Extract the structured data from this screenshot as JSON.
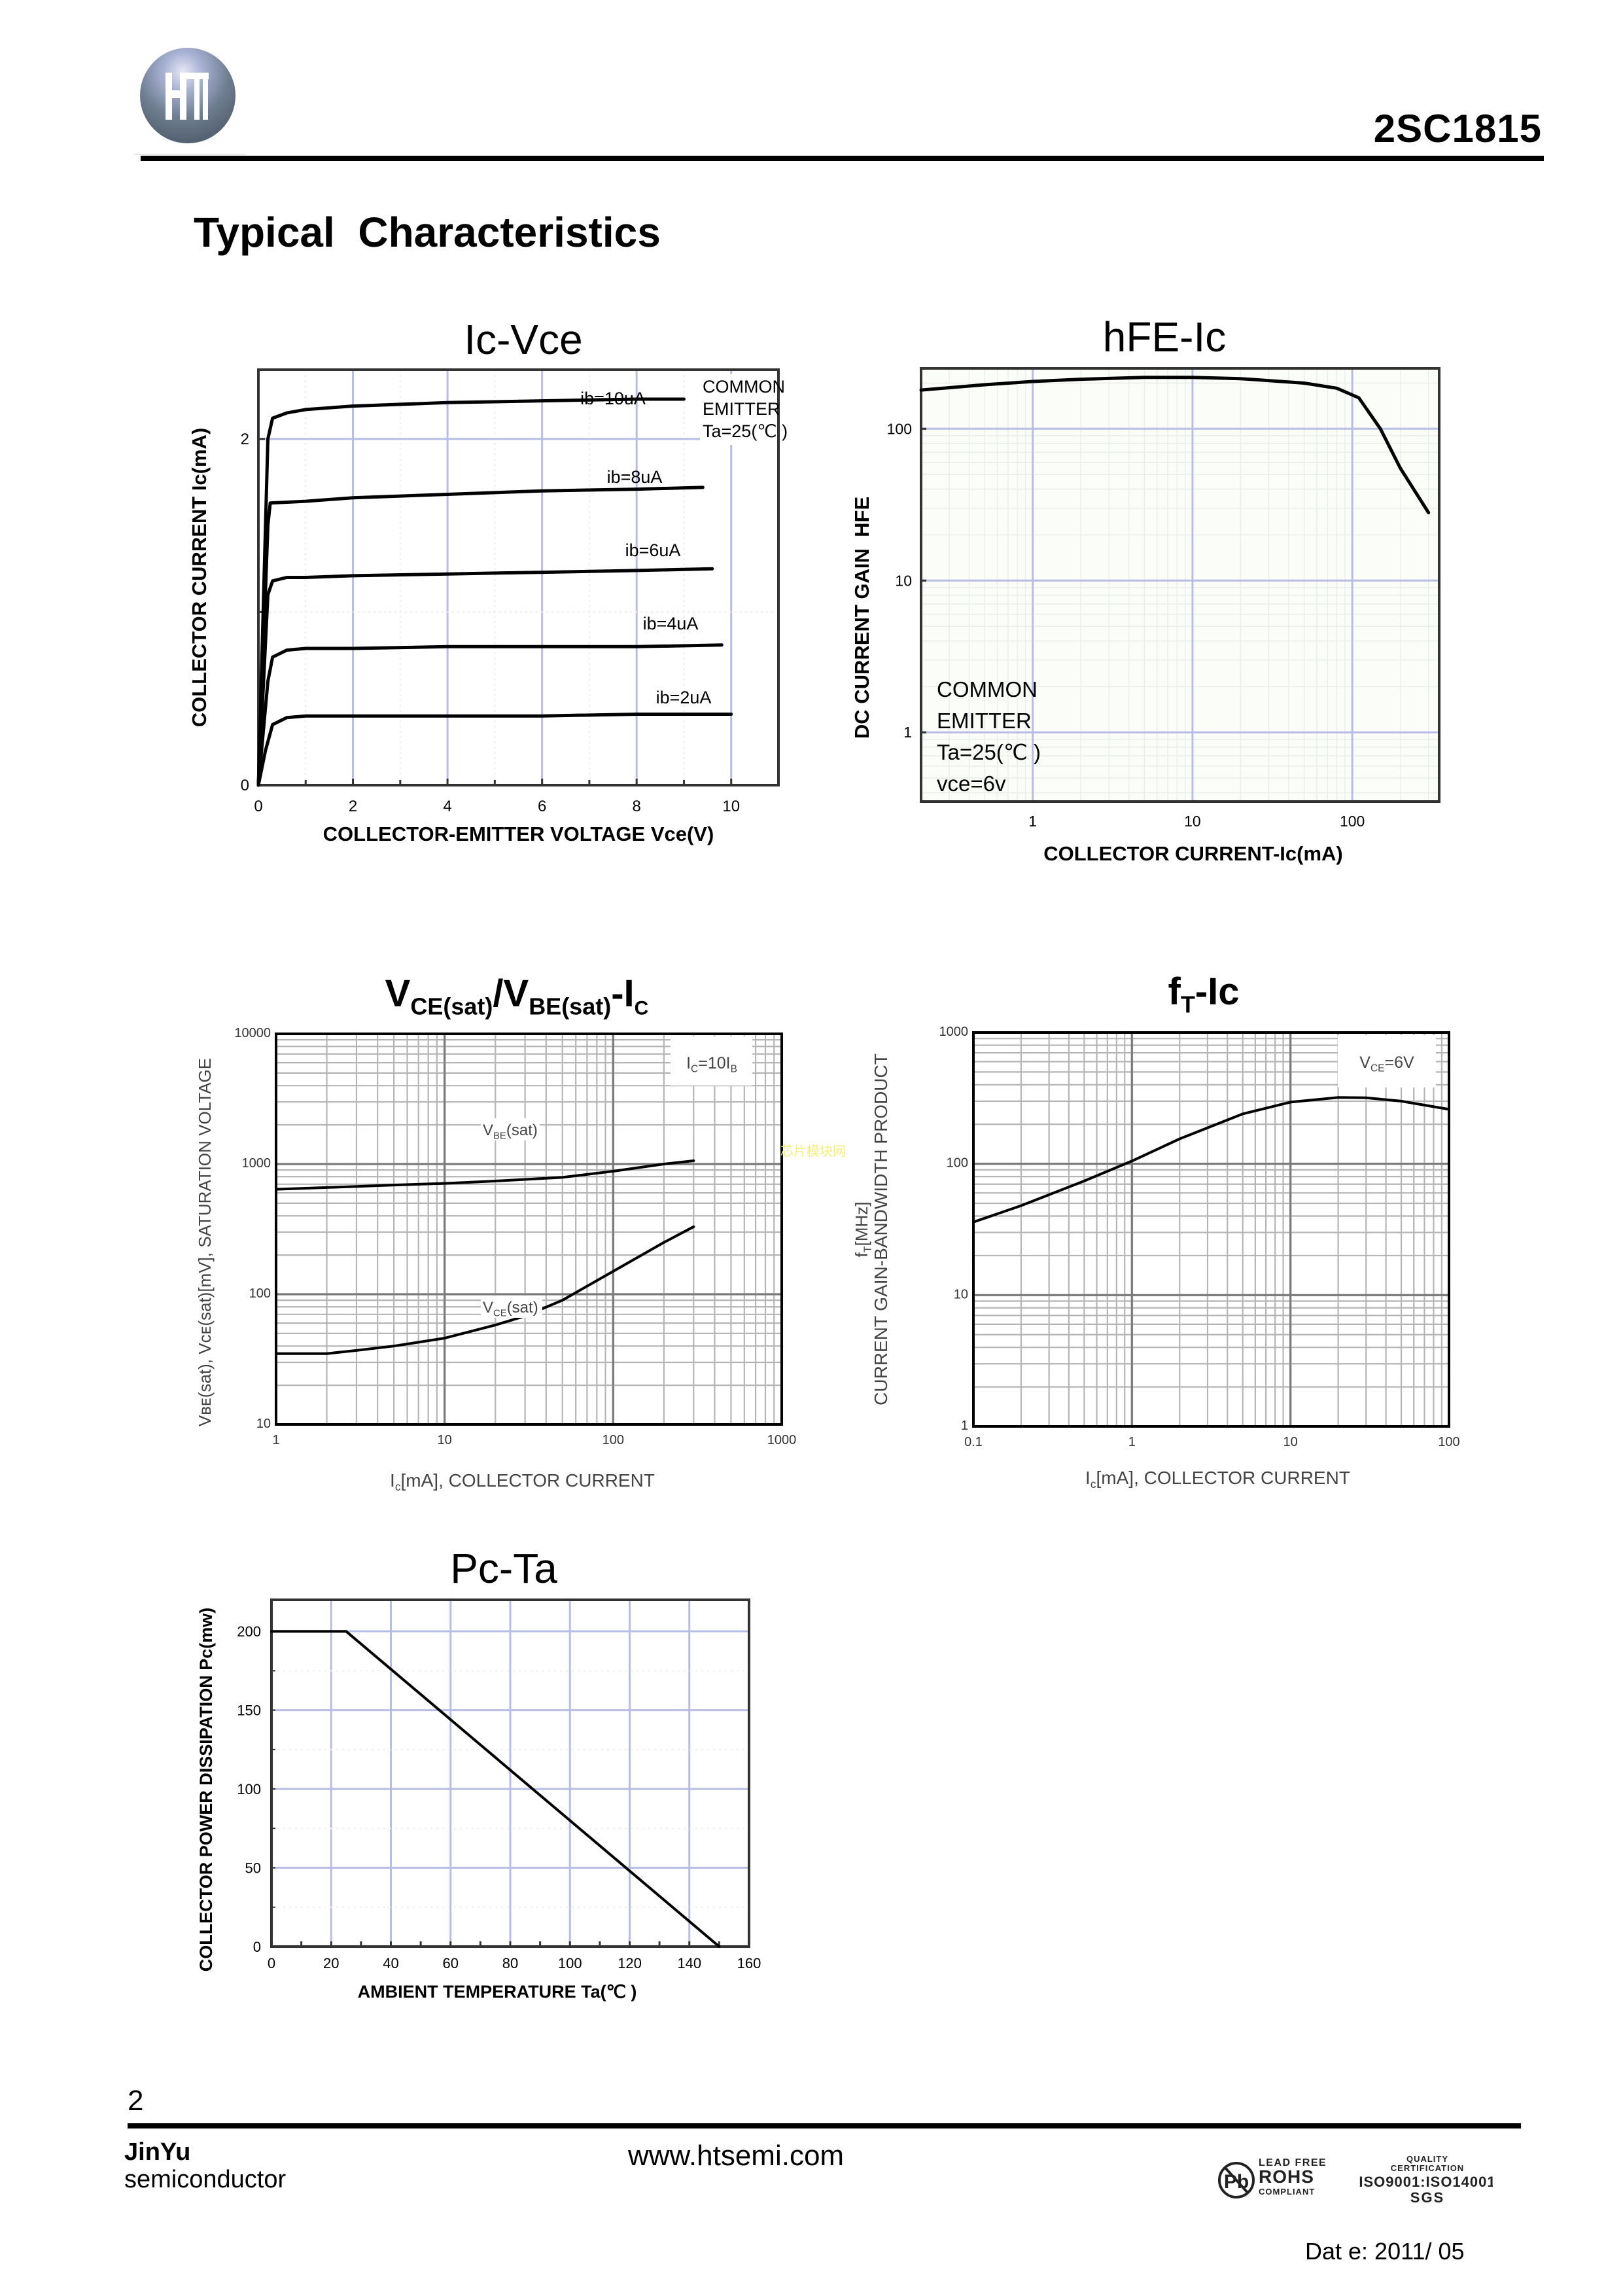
{
  "header": {
    "logo_text": "HT",
    "part_number": "2SC1815"
  },
  "section_title": "Typical  Characteristics",
  "watermark": "芯片模块网",
  "colors": {
    "grid_blue": "#b8bde6",
    "grid_gray": "#b5b5b5",
    "curve": "#000000",
    "watermark": "#f4ee7a"
  },
  "chart_data": [
    {
      "id": "ic-vce",
      "type": "line",
      "title": "Ic-Vce",
      "xlabel": "COLLECTOR-EMITTER VOLTAGE Vce(V)",
      "ylabel": "COLLECTOR CURRENT Ic(mA)",
      "xlim": [
        0,
        11
      ],
      "ylim": [
        0,
        2.4
      ],
      "xticks": [
        "0",
        "2",
        "4",
        "6",
        "8",
        "10"
      ],
      "xtick_values": [
        0,
        2,
        4,
        6,
        8,
        10
      ],
      "yticks": [
        "0",
        "2"
      ],
      "ytick_values": [
        0,
        2
      ],
      "grid": true,
      "annotation": [
        "COMMON",
        "EMITTER",
        "Ta=25(℃ )"
      ],
      "series": [
        {
          "name": "ib=10uA",
          "x": [
            0,
            0.2,
            0.3,
            0.6,
            1,
            2,
            4,
            6,
            8,
            9
          ],
          "y": [
            0,
            2.0,
            2.12,
            2.15,
            2.17,
            2.19,
            2.21,
            2.22,
            2.23,
            2.23
          ]
        },
        {
          "name": "ib=8uA",
          "x": [
            0,
            0.2,
            0.25,
            1,
            2,
            4,
            6,
            8,
            9.4
          ],
          "y": [
            0,
            1.5,
            1.63,
            1.64,
            1.66,
            1.68,
            1.7,
            1.71,
            1.72
          ]
        },
        {
          "name": "ib=6uA",
          "x": [
            0,
            0.2,
            0.3,
            0.6,
            1,
            2,
            4,
            6,
            8,
            9.6
          ],
          "y": [
            0,
            1.1,
            1.18,
            1.2,
            1.2,
            1.21,
            1.22,
            1.23,
            1.24,
            1.25
          ]
        },
        {
          "name": "ib=4uA",
          "x": [
            0,
            0.2,
            0.3,
            0.6,
            1,
            2,
            4,
            6,
            8,
            9.8
          ],
          "y": [
            0,
            0.6,
            0.74,
            0.78,
            0.79,
            0.79,
            0.8,
            0.8,
            0.8,
            0.81
          ]
        },
        {
          "name": "ib=2uA",
          "x": [
            0,
            0.15,
            0.3,
            0.6,
            1,
            2,
            4,
            6,
            8,
            10
          ],
          "y": [
            0,
            0.2,
            0.35,
            0.39,
            0.4,
            0.4,
            0.4,
            0.4,
            0.41,
            0.41
          ]
        }
      ]
    },
    {
      "id": "hfe-ic",
      "type": "line",
      "title": "hFE-Ic",
      "xlabel": "COLLECTOR CURRENT-Ic(mA)",
      "ylabel": "DC CURRENT GAIN  HFE",
      "xscale": "log",
      "yscale": "log",
      "xlim": [
        0.2,
        350
      ],
      "ylim": [
        0.35,
        250
      ],
      "xticks": [
        "1",
        "10",
        "100"
      ],
      "xtick_values": [
        1,
        10,
        100
      ],
      "yticks": [
        "1",
        "10",
        "100"
      ],
      "ytick_values": [
        1,
        10,
        100
      ],
      "grid": true,
      "annotation": [
        "COMMON",
        "EMITTER",
        "Ta=25(℃ )",
        "vce=6v"
      ],
      "series": [
        {
          "name": "hFE",
          "x": [
            0.2,
            0.5,
            1,
            2,
            5,
            10,
            20,
            50,
            80,
            110,
            150,
            200,
            300
          ],
          "y": [
            180,
            195,
            205,
            212,
            218,
            218,
            214,
            200,
            185,
            160,
            100,
            55,
            28
          ]
        }
      ]
    },
    {
      "id": "vsat-ic",
      "type": "line",
      "title_parts": [
        "V",
        "CE(sat)",
        "/V",
        "BE(sat)",
        "-I",
        "C"
      ],
      "xlabel_parts": [
        "I",
        "c",
        "[mA], COLLECTOR CURRENT"
      ],
      "ylabel": "Vʙᴇ(sat), Vᴄᴇ(sat)[mV], SATURATION VOLTAGE",
      "xscale": "log",
      "yscale": "log",
      "xlim": [
        1,
        1000
      ],
      "ylim": [
        10,
        10000
      ],
      "xticks": [
        "1",
        "10",
        "100",
        "1000"
      ],
      "xtick_values": [
        1,
        10,
        100,
        1000
      ],
      "yticks": [
        "10",
        "100",
        "1000",
        "10000"
      ],
      "ytick_values": [
        10,
        100,
        1000,
        10000
      ],
      "grid": true,
      "annotation_parts": [
        "I",
        "C",
        "=10I",
        "B"
      ],
      "series": [
        {
          "name": "VBE(sat)",
          "label_parts": [
            "V",
            "BE",
            "(sat)"
          ],
          "x": [
            1,
            2,
            5,
            10,
            20,
            50,
            100,
            200,
            300
          ],
          "y": [
            640,
            660,
            690,
            710,
            740,
            790,
            880,
            1000,
            1060
          ]
        },
        {
          "name": "VCE(sat)",
          "label_parts": [
            "V",
            "CE",
            "(sat)"
          ],
          "x": [
            1,
            2,
            3,
            5,
            10,
            20,
            30,
            50,
            100,
            200,
            300
          ],
          "y": [
            35,
            35,
            37,
            40,
            46,
            58,
            68,
            90,
            150,
            250,
            330
          ]
        }
      ]
    },
    {
      "id": "ft-ic",
      "type": "line",
      "title_parts": [
        "f",
        "T",
        "-Ic"
      ],
      "xlabel_parts": [
        "I",
        "c",
        "[mA], COLLECTOR CURRENT"
      ],
      "ylabel_line1_parts": [
        "f",
        "T",
        "[MHz]"
      ],
      "ylabel_line2": "CURRENT GAIN-BANDWIDTH PRODUCT",
      "xscale": "log",
      "yscale": "log",
      "xlim": [
        0.1,
        100
      ],
      "ylim": [
        1,
        1000
      ],
      "xticks": [
        "0.1",
        "1",
        "10",
        "100"
      ],
      "xtick_values": [
        0.1,
        1,
        10,
        100
      ],
      "yticks": [
        "1",
        "10",
        "100",
        "1000"
      ],
      "ytick_values": [
        1,
        10,
        100,
        1000
      ],
      "grid": true,
      "annotation_parts": [
        "V",
        "CE",
        "=6V"
      ],
      "series": [
        {
          "name": "fT",
          "x": [
            0.1,
            0.2,
            0.5,
            1,
            2,
            5,
            10,
            20,
            30,
            50,
            100
          ],
          "y": [
            36,
            48,
            74,
            105,
            155,
            240,
            295,
            320,
            318,
            300,
            260
          ]
        }
      ]
    },
    {
      "id": "pc-ta",
      "type": "line",
      "title": "Pc-Ta",
      "xlabel": "AMBIENT TEMPERATURE Ta(℃ )",
      "ylabel": "COLLECTOR POWER DISSIPATION Pc(mw)",
      "xlim": [
        0,
        160
      ],
      "ylim": [
        0,
        220
      ],
      "xticks": [
        "0",
        "20",
        "40",
        "60",
        "80",
        "100",
        "120",
        "140",
        "160"
      ],
      "xtick_values": [
        0,
        20,
        40,
        60,
        80,
        100,
        120,
        140,
        160
      ],
      "yticks": [
        "0",
        "50",
        "100",
        "150",
        "200"
      ],
      "ytick_values": [
        0,
        50,
        100,
        150,
        200
      ],
      "grid": true,
      "series": [
        {
          "name": "Pc",
          "x": [
            0,
            25,
            150
          ],
          "y": [
            200,
            200,
            0
          ]
        }
      ]
    }
  ],
  "footer": {
    "page_number": "2",
    "brand_line1": "JinYu",
    "brand_line2": "semiconductor",
    "url": "www.htsemi.com",
    "cert": {
      "lead_free": "LEAD FREE",
      "rohs": "ROHS",
      "compliant": "COMPLIANT",
      "quality": "QUALITY",
      "certification": "CERTIFICATION",
      "iso": "ISO9001:ISO14001",
      "sgs": "SGS",
      "pb": "Pb"
    },
    "date": "Dat e: 2011/ 05"
  }
}
